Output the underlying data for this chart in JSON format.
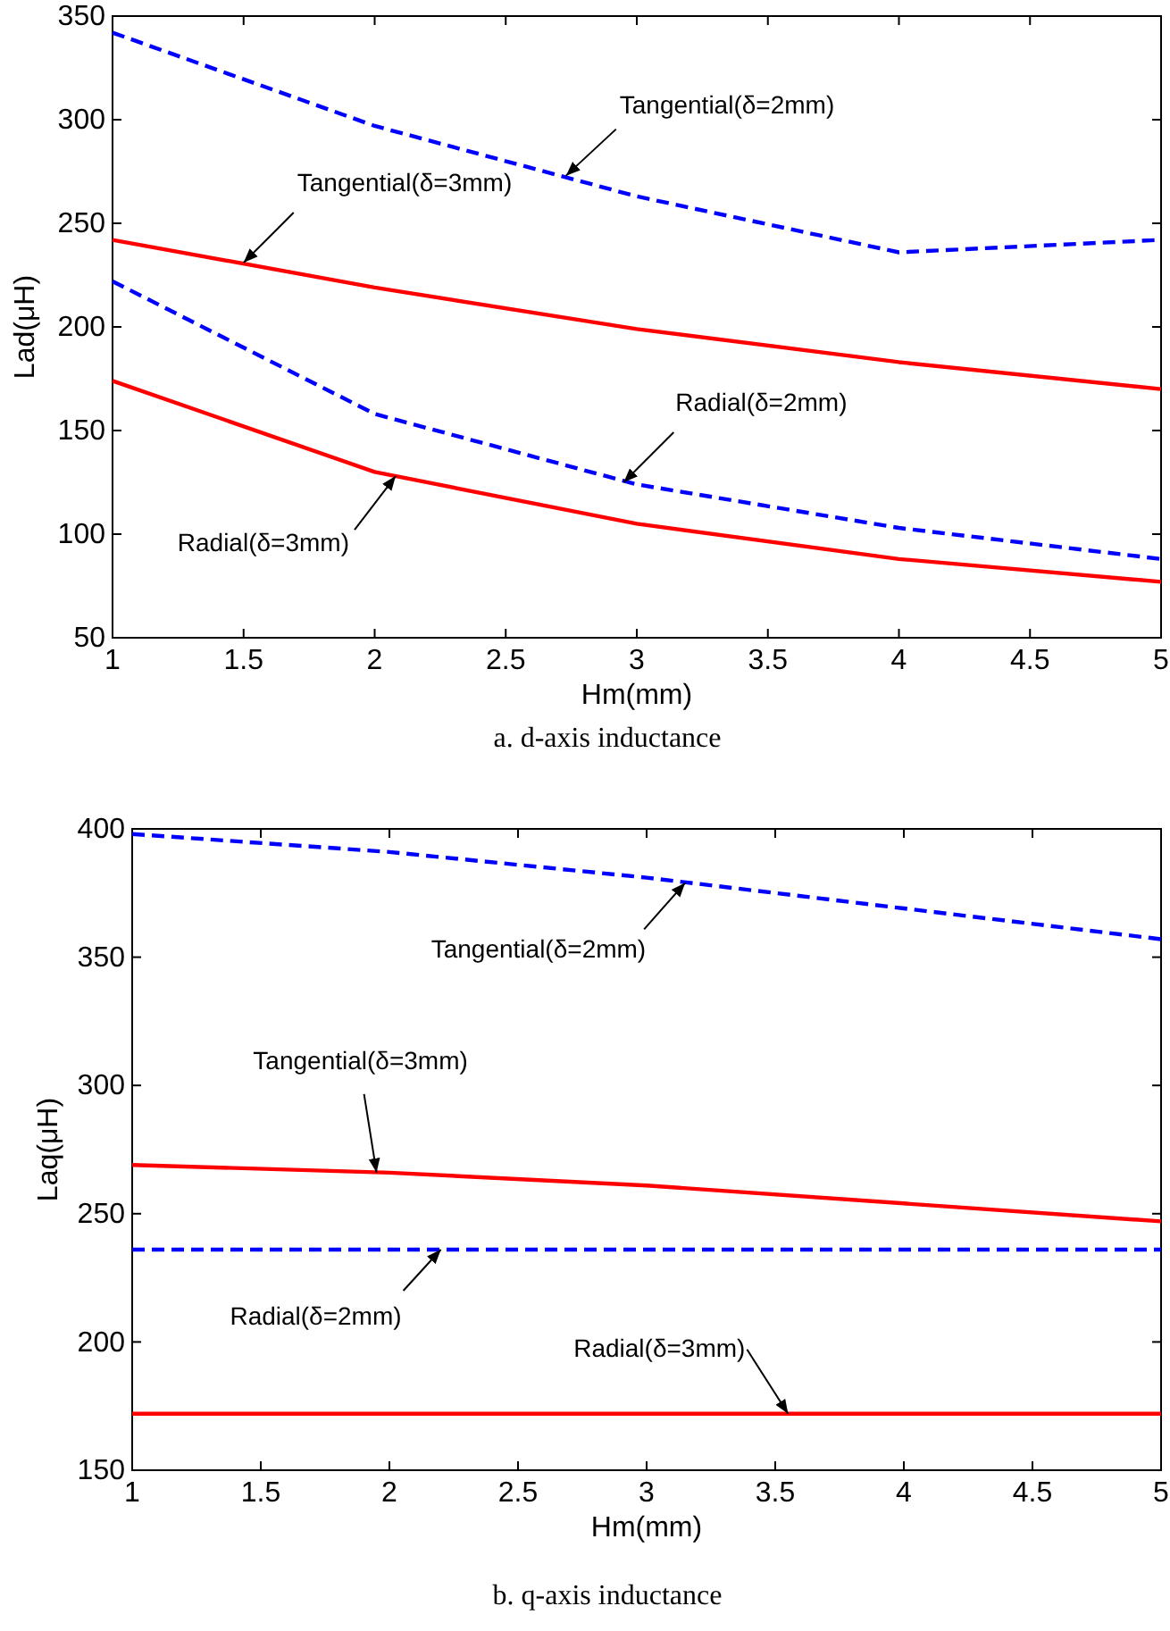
{
  "chart_data": [
    {
      "type": "line",
      "title": "a. d-axis inductance",
      "xlabel": "Hm(mm)",
      "ylabel": "Lad(μH)",
      "x": [
        1,
        2,
        3,
        4,
        5
      ],
      "xlim": [
        1,
        5
      ],
      "xticks": [
        1,
        1.5,
        2,
        2.5,
        3,
        3.5,
        4,
        4.5,
        5
      ],
      "ylim": [
        50,
        350
      ],
      "yticks": [
        50,
        100,
        150,
        200,
        250,
        300,
        350
      ],
      "grid": false,
      "series": [
        {
          "color": "#0000ff",
          "line_style": "dashed",
          "values": [
            342,
            297,
            263,
            236,
            242
          ]
        },
        {
          "color": "#ff0000",
          "line_style": "solid",
          "values": [
            242,
            219,
            199,
            183,
            170
          ]
        },
        {
          "color": "#0000ff",
          "line_style": "dashed",
          "values": [
            222,
            158,
            124,
            103,
            88
          ]
        },
        {
          "color": "#ff0000",
          "line_style": "solid",
          "values": [
            174,
            130,
            105,
            88,
            77
          ]
        }
      ],
      "annotations": [
        {
          "text": "Tangential(δ=2mm)",
          "x": 2.73,
          "y": 273
        },
        {
          "text": "Tangential(δ=3mm)",
          "x": 1.5,
          "y": 231
        },
        {
          "text": "Radial(δ=2mm)",
          "x": 2.95,
          "y": 125
        },
        {
          "text": "Radial(δ=3mm)",
          "x": 2.08,
          "y": 128
        }
      ]
    },
    {
      "type": "line",
      "title": "b. q-axis inductance",
      "xlabel": "Hm(mm)",
      "ylabel": "Laq(μH)",
      "x": [
        1,
        2,
        3,
        4,
        5
      ],
      "xlim": [
        1,
        5
      ],
      "xticks": [
        1,
        1.5,
        2,
        2.5,
        3,
        3.5,
        4,
        4.5,
        5
      ],
      "ylim": [
        150,
        400
      ],
      "yticks": [
        150,
        200,
        250,
        300,
        350,
        400
      ],
      "grid": false,
      "series": [
        {
          "color": "#0000ff",
          "line_style": "dashed",
          "values": [
            398,
            391,
            381,
            369,
            357
          ]
        },
        {
          "color": "#ff0000",
          "line_style": "solid",
          "values": [
            269,
            266,
            261,
            254,
            247
          ]
        },
        {
          "color": "#0000ff",
          "line_style": "dashed",
          "values": [
            236,
            236,
            236,
            236,
            236
          ]
        },
        {
          "color": "#ff0000",
          "line_style": "solid",
          "values": [
            172,
            172,
            172,
            172,
            172
          ]
        }
      ],
      "annotations": [
        {
          "text": "Tangential(δ=2mm)",
          "x": 3.15,
          "y": 379
        },
        {
          "text": "Tangential(δ=3mm)",
          "x": 1.95,
          "y": 266
        },
        {
          "text": "Radial(δ=2mm)",
          "x": 2.2,
          "y": 236
        },
        {
          "text": "Radial(δ=3mm)",
          "x": 3.55,
          "y": 172
        }
      ]
    }
  ]
}
